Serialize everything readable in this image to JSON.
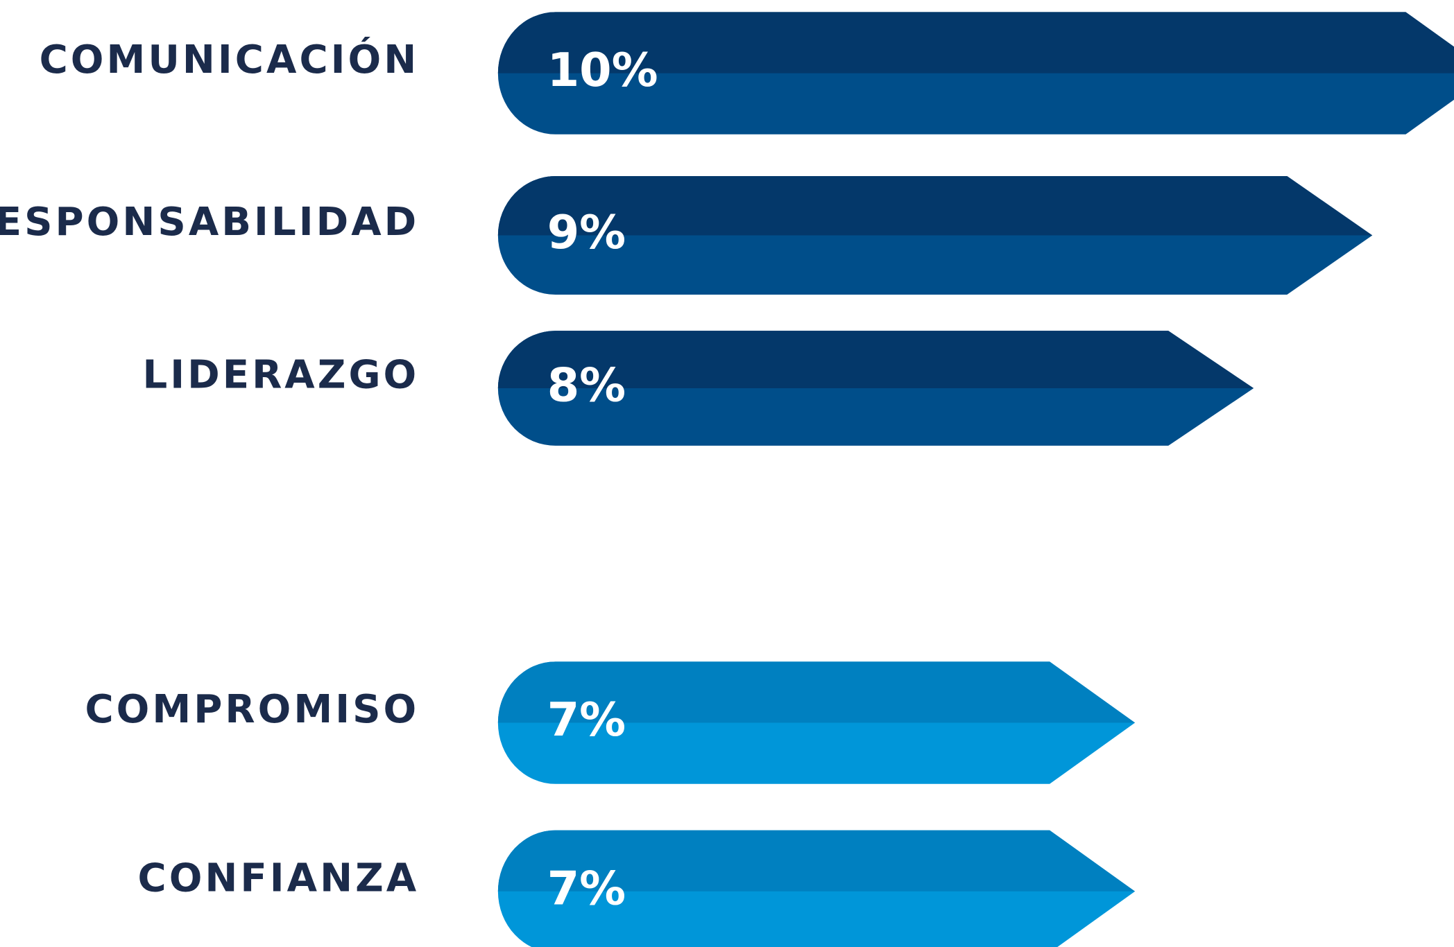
{
  "chart_data": {
    "type": "bar",
    "orientation": "horizontal",
    "categories": [
      "COMUNICACIÓN",
      "RESPONSABILIDAD",
      "LIDERAZGO",
      "COMPROMISO",
      "CONFIANZA"
    ],
    "values": [
      10,
      9,
      8,
      7,
      7
    ],
    "value_labels": [
      "10%",
      "9%",
      "8%",
      "7%",
      "7%"
    ],
    "colors": [
      "#004e8a",
      "#004e8a",
      "#004e8a",
      "#0096d9",
      "#0096d9"
    ],
    "top_colors": [
      "#04386a",
      "#04386a",
      "#04386a",
      "#0080c0",
      "#0080c0"
    ]
  }
}
